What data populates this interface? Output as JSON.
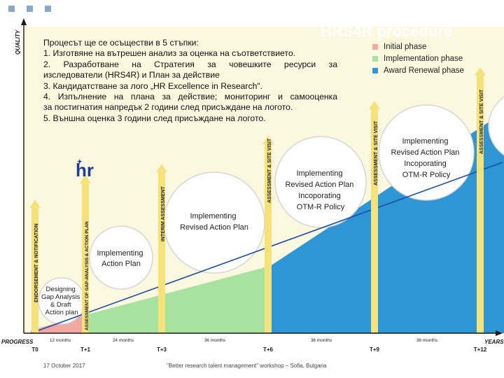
{
  "slide": {
    "title": "HRS4R procedure",
    "intro_lines": [
      "Процесът ще се осъществи в 5 стъпки:",
      "1. Изготвяне на вътрешен анализ за оценка на съответствието.",
      "2. Разработване на Стратегия за човешките ресурси за",
      "изследователи (HRS4R) и План за действие",
      "3. Кандидатстване за лого „HR Excellence in Research\".",
      "4. Изпълнение на плана за действие; мониторинг и самооценка",
      "за постигнатия напредък 2 години след присъждане на логото.",
      "5. Външна оценка 3 години след присъждане на логото."
    ],
    "logo_text": "hr",
    "footer": {
      "date": "17 October 2017",
      "event": "\"Better research talent management\" workshop – Sofia, Bulgaria"
    }
  },
  "legend": [
    {
      "label": "Initial phase",
      "color": "#f3a7a3"
    },
    {
      "label": "Implementation phase",
      "color": "#a6e3a0"
    },
    {
      "label": "Award Renewal phase",
      "color": "#2f96d6"
    }
  ],
  "axes": {
    "y_label": "QUALITY",
    "x_label": "PROGRESS",
    "x_end_label": "YEARS"
  },
  "timeline": {
    "ticks": [
      "T0",
      "T+1",
      "T+3",
      "T+6",
      "T+9",
      "T+12"
    ],
    "durations": [
      "12 months",
      "24 months",
      "36 months",
      "36 months",
      "36 months"
    ]
  },
  "milestones": [
    "ENDORSEMENT & NOTIFICATION",
    "ASSESSMENT OF GAP-ANALYSIS & ACTION PLAN",
    "INTERIM ASSESSMENT",
    "ASSESSMENT & SITE VISIT",
    "ASSESSMENT & SITE VISIT",
    "ASSESSMENT & SITE VISIT"
  ],
  "phase_bubbles": [
    [
      "Designing",
      "Gap Analysis",
      "& Draft",
      "Action plan"
    ],
    [
      "Implementing",
      "Action Plan"
    ],
    [
      "Implementing",
      "Revised Action Plan"
    ],
    [
      "Implementing",
      "Revised Action Plan",
      "Incoporating",
      "OTM-R Policy"
    ],
    [
      "Implementing",
      "Revised Action Plan",
      "Incoporating",
      "OTM-R Policy"
    ]
  ],
  "colors": {
    "background_panel": "#fcf7df",
    "initial": "#f3a7a3",
    "implementation": "#a6e3a0",
    "renewal": "#2f96d6",
    "arrow_yellow": "#f5e27a",
    "trend_line": "#1c4fa0"
  }
}
